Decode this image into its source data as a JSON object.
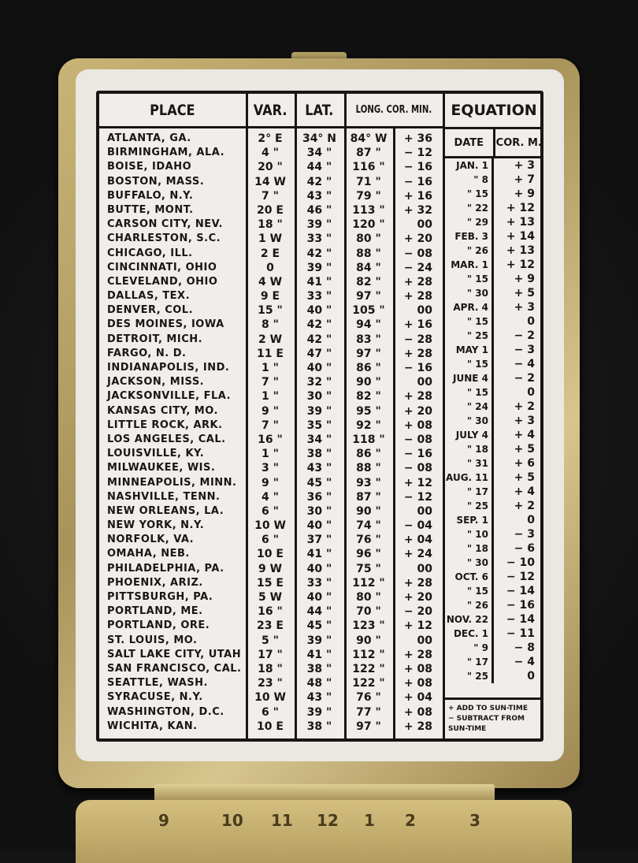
{
  "headers": {
    "place": "PLACE",
    "var": "VAR.",
    "lat": "LAT.",
    "long_cor": "LONG. COR. MIN.",
    "equation": "EQUATION",
    "date": "DATE",
    "cor_m": "COR. M."
  },
  "places": [
    [
      "ATLANTA, GA.",
      "2° E",
      "34° N",
      "84° W",
      "+ 36"
    ],
    [
      "BIRMINGHAM, ALA.",
      "4 \"",
      "34 \"",
      "87 \"",
      "− 12"
    ],
    [
      "BOISE, IDAHO",
      "20 \"",
      "44 \"",
      "116 \"",
      "− 16"
    ],
    [
      "BOSTON, MASS.",
      "14 W",
      "42 \"",
      "71 \"",
      "− 16"
    ],
    [
      "BUFFALO, N.Y.",
      "7 \"",
      "43 \"",
      "79 \"",
      "+ 16"
    ],
    [
      "BUTTE, MONT.",
      "20 E",
      "46 \"",
      "113 \"",
      "+ 32"
    ],
    [
      "CARSON CITY, NEV.",
      "18 \"",
      "39 \"",
      "120 \"",
      "00"
    ],
    [
      "CHARLESTON, S.C.",
      "1 W",
      "33 \"",
      "80 \"",
      "+ 20"
    ],
    [
      "CHICAGO, ILL.",
      "2 E",
      "42 \"",
      "88 \"",
      "− 08"
    ],
    [
      "CINCINNATI, OHIO",
      "0",
      "39 \"",
      "84 \"",
      "− 24"
    ],
    [
      "CLEVELAND, OHIO",
      "4 W",
      "41 \"",
      "82 \"",
      "+ 28"
    ],
    [
      "DALLAS, TEX.",
      "9 E",
      "33 \"",
      "97 \"",
      "+ 28"
    ],
    [
      "DENVER, COL.",
      "15 \"",
      "40 \"",
      "105 \"",
      "00"
    ],
    [
      "DES MOINES, IOWA",
      "8 \"",
      "42 \"",
      "94 \"",
      "+ 16"
    ],
    [
      "DETROIT, MICH.",
      "2 W",
      "42 \"",
      "83 \"",
      "− 28"
    ],
    [
      "FARGO, N. D.",
      "11 E",
      "47 \"",
      "97 \"",
      "+ 28"
    ],
    [
      "INDIANAPOLIS, IND.",
      "1 \"",
      "40 \"",
      "86 \"",
      "− 16"
    ],
    [
      "JACKSON, MISS.",
      "7 \"",
      "32 \"",
      "90 \"",
      "00"
    ],
    [
      "JACKSONVILLE, FLA.",
      "1 \"",
      "30 \"",
      "82 \"",
      "+ 28"
    ],
    [
      "KANSAS CITY, MO.",
      "9 \"",
      "39 \"",
      "95 \"",
      "+ 20"
    ],
    [
      "LITTLE ROCK, ARK.",
      "7 \"",
      "35 \"",
      "92 \"",
      "+ 08"
    ],
    [
      "LOS ANGELES, CAL.",
      "16 \"",
      "34 \"",
      "118 \"",
      "− 08"
    ],
    [
      "LOUISVILLE, KY.",
      "1 \"",
      "38 \"",
      "86 \"",
      "− 16"
    ],
    [
      "MILWAUKEE, WIS.",
      "3 \"",
      "43 \"",
      "88 \"",
      "− 08"
    ],
    [
      "MINNEAPOLIS, MINN.",
      "9 \"",
      "45 \"",
      "93 \"",
      "+ 12"
    ],
    [
      "NASHVILLE, TENN.",
      "4 \"",
      "36 \"",
      "87 \"",
      "− 12"
    ],
    [
      "NEW ORLEANS, LA.",
      "6 \"",
      "30 \"",
      "90 \"",
      "00"
    ],
    [
      "NEW YORK, N.Y.",
      "10 W",
      "40 \"",
      "74 \"",
      "− 04"
    ],
    [
      "NORFOLK, VA.",
      "6 \"",
      "37 \"",
      "76 \"",
      "+ 04"
    ],
    [
      "OMAHA, NEB.",
      "10 E",
      "41 \"",
      "96 \"",
      "+ 24"
    ],
    [
      "PHILADELPHIA, PA.",
      "9 W",
      "40 \"",
      "75 \"",
      "00"
    ],
    [
      "PHOENIX, ARIZ.",
      "15 E",
      "33 \"",
      "112 \"",
      "+ 28"
    ],
    [
      "PITTSBURGH, PA.",
      "5 W",
      "40 \"",
      "80 \"",
      "+ 20"
    ],
    [
      "PORTLAND, ME.",
      "16 \"",
      "44 \"",
      "70 \"",
      "− 20"
    ],
    [
      "PORTLAND, ORE.",
      "23 E",
      "45 \"",
      "123 \"",
      "+ 12"
    ],
    [
      "ST. LOUIS, MO.",
      "5 \"",
      "39 \"",
      "90 \"",
      "00"
    ],
    [
      "SALT LAKE CITY, UTAH",
      "17 \"",
      "41 \"",
      "112 \"",
      "+ 28"
    ],
    [
      "SAN FRANCISCO, CAL.",
      "18 \"",
      "38 \"",
      "122 \"",
      "+ 08"
    ],
    [
      "SEATTLE, WASH.",
      "23 \"",
      "48 \"",
      "122 \"",
      "+ 08"
    ],
    [
      "SYRACUSE, N.Y.",
      "10 W",
      "43 \"",
      "76 \"",
      "+ 04"
    ],
    [
      "WASHINGTON, D.C.",
      "6 \"",
      "39 \"",
      "77 \"",
      "+ 08"
    ],
    [
      "WICHITA, KAN.",
      "10 E",
      "38 \"",
      "97 \"",
      "+ 28"
    ]
  ],
  "equation": [
    [
      "JAN. 1",
      "+ 3"
    ],
    [
      "\" 8",
      "+ 7"
    ],
    [
      "\" 15",
      "+ 9"
    ],
    [
      "\" 22",
      "+ 12"
    ],
    [
      "\" 29",
      "+ 13"
    ],
    [
      "FEB. 3",
      "+ 14"
    ],
    [
      "\" 26",
      "+ 13"
    ],
    [
      "MAR. 1",
      "+ 12"
    ],
    [
      "\" 15",
      "+ 9"
    ],
    [
      "\" 30",
      "+ 5"
    ],
    [
      "APR. 4",
      "+ 3"
    ],
    [
      "\" 15",
      "0"
    ],
    [
      "\" 25",
      "− 2"
    ],
    [
      "MAY 1",
      "− 3"
    ],
    [
      "\" 15",
      "− 4"
    ],
    [
      "JUNE 4",
      "− 2"
    ],
    [
      "\" 15",
      "0"
    ],
    [
      "\" 24",
      "+ 2"
    ],
    [
      "\" 30",
      "+ 3"
    ],
    [
      "JULY 4",
      "+ 4"
    ],
    [
      "\" 18",
      "+ 5"
    ],
    [
      "\" 31",
      "+ 6"
    ],
    [
      "AUG. 11",
      "+ 5"
    ],
    [
      "\" 17",
      "+ 4"
    ],
    [
      "\" 25",
      "+ 2"
    ],
    [
      "SEP. 1",
      "0"
    ],
    [
      "\" 10",
      "− 3"
    ],
    [
      "\" 18",
      "− 6"
    ],
    [
      "\" 30",
      "− 10"
    ],
    [
      "OCT. 6",
      "− 12"
    ],
    [
      "\" 15",
      "− 14"
    ],
    [
      "\" 26",
      "− 16"
    ],
    [
      "NOV. 22",
      "− 14"
    ],
    [
      "DEC. 1",
      "− 11"
    ],
    [
      "\" 9",
      "− 8"
    ],
    [
      "\" 17",
      "− 4"
    ],
    [
      "\" 25",
      "0"
    ]
  ],
  "footnote": {
    "add": "+ ADD TO SUN-TIME",
    "subtract": "− SUBTRACT FROM SUN-TIME"
  },
  "dial_numbers": [
    "9",
    "10",
    "11",
    "12",
    "1",
    "2",
    "3"
  ]
}
